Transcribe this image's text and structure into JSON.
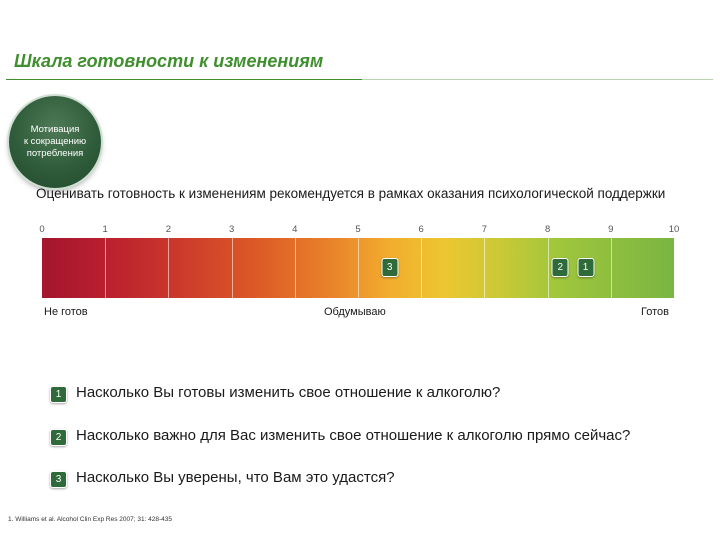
{
  "header": {
    "title": "Шкала готовности к изменениям"
  },
  "badge": {
    "line1": "Мотивация",
    "line2": "к сокращению",
    "line3": "потребления"
  },
  "subtitle": "Оценивать готовность к изменениям рекомендуется в рамках оказания психологической поддержки",
  "scale": {
    "ticks": [
      "0",
      "1",
      "2",
      "3",
      "4",
      "5",
      "6",
      "7",
      "8",
      "9",
      "10"
    ],
    "markers": [
      {
        "label": "3",
        "value": 5.5
      },
      {
        "label": "2",
        "value": 8.2
      },
      {
        "label": "1",
        "value": 8.6
      }
    ],
    "anchors": {
      "left": "Не готов",
      "middle": "Обдумываю",
      "right": "Готов"
    },
    "gradient_colors": [
      "#a3162e",
      "#dc5a26",
      "#f2ad2e",
      "#ecc731",
      "#7ab542"
    ]
  },
  "questions": [
    {
      "num": "1",
      "text": "Насколько Вы готовы изменить свое отношение к алкоголю?"
    },
    {
      "num": "2",
      "text": "Насколько важно для Вас изменить свое отношение к алкоголю прямо сейчас?"
    },
    {
      "num": "3",
      "text": "Насколько Вы уверены, что Вам это удастся?"
    }
  ],
  "footnote": "1.  Williams et al. Alcohol Clin Exp Res 2007; 31: 428-435",
  "colors": {
    "accent": "#3f8f2e",
    "badge": "#2f5c3a",
    "marker": "#2f6a3a"
  }
}
